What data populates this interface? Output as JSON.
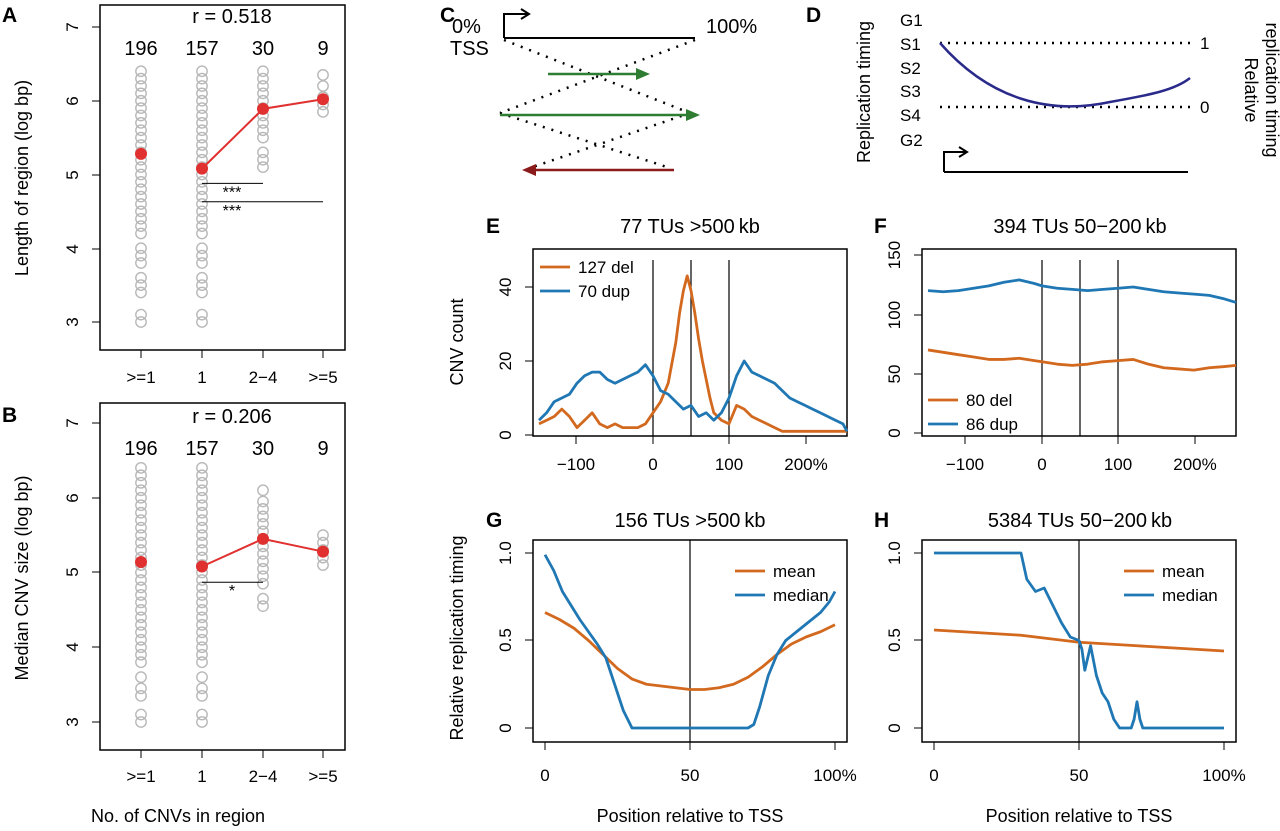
{
  "panels": {
    "A": {
      "letter": "A",
      "stat": "r = 0.518",
      "counts": [
        "196",
        "157",
        "30",
        "9"
      ],
      "ylabel": "Length of region (log bp)",
      "yticks": [
        "3",
        "4",
        "5",
        "6",
        "7"
      ],
      "xticks": [
        ">=1",
        "1",
        "2−4",
        ">=5"
      ],
      "sig": [
        "***",
        "***"
      ]
    },
    "B": {
      "letter": "B",
      "stat": "r = 0.206",
      "counts": [
        "196",
        "157",
        "30",
        "9"
      ],
      "ylabel": "Median CNV size (log bp)",
      "yticks": [
        "3",
        "4",
        "5",
        "6",
        "7"
      ],
      "xticks": [
        ">=1",
        "1",
        "2−4",
        ">=5"
      ],
      "sig": [
        "*"
      ],
      "xlabel": "No. of CNVs in region"
    },
    "C": {
      "letter": "C",
      "left_label": "0%",
      "tss_label": "TSS",
      "right_label": "100%"
    },
    "D": {
      "letter": "D",
      "ylabel": "Replication timing",
      "stages": [
        "G1",
        "S1",
        "S2",
        "S3",
        "S4",
        "G2"
      ],
      "right_ticks": [
        "1",
        "0"
      ],
      "right_label_1": "Relative",
      "right_label_2": "replication timing"
    },
    "E": {
      "letter": "E",
      "title": "77 TUs >500 kb",
      "ylabel": "CNV count",
      "yticks": [
        "0",
        "20",
        "40"
      ],
      "xticks": [
        "−100",
        "0",
        "100",
        "200%"
      ]
    },
    "F": {
      "letter": "F",
      "title": "394 TUs 50−200 kb",
      "yticks": [
        "0",
        "50",
        "100",
        "150"
      ],
      "xticks": [
        "−100",
        "0",
        "100",
        "200%"
      ]
    },
    "G": {
      "letter": "G",
      "title": "156 TUs >500 kb",
      "ylabel": "Relative replication timing",
      "yticks": [
        "0",
        "0.5",
        "1.0"
      ],
      "xticks": [
        "0",
        "50",
        "100%"
      ],
      "xlabel": "Position relative to TSS"
    },
    "H": {
      "letter": "H",
      "title": "5384 TUs 50−200 kb",
      "yticks": [
        "0",
        "0.5",
        "1.0"
      ],
      "xticks": [
        "0",
        "50",
        "100%"
      ],
      "xlabel": "Position relative to TSS"
    }
  },
  "colors": {
    "del": "#d2691e",
    "dup": "#1f77b4",
    "mean": "#d2691e",
    "median": "#1f77b4",
    "points": "#b8b8b8",
    "median_dot": "#e03030",
    "green_arrow": "#2e7d32",
    "red_arrow": "#8b1a1a",
    "timing_curve": "#2a2a8a"
  },
  "chart_data": [
    {
      "panel": "A",
      "type": "scatter",
      "title": "r = 0.518",
      "xlabel": "",
      "ylabel": "Length of region (log bp)",
      "categories": [
        ">=1",
        "1",
        "2−4",
        ">=5"
      ],
      "n": [
        196,
        157,
        30,
        9
      ],
      "ylim": [
        2.9,
        7
      ],
      "medians": [
        5.28,
        5.08,
        5.89,
        6.02
      ],
      "points": [
        [
          3.0,
          3.1,
          3.4,
          3.5,
          3.6,
          3.8,
          3.9,
          4.0,
          4.2,
          4.3,
          4.4,
          4.5,
          4.6,
          4.7,
          4.8,
          4.9,
          5.0,
          5.1,
          5.2,
          5.3,
          5.4,
          5.5,
          5.6,
          5.7,
          5.8,
          5.9,
          6.0,
          6.1,
          6.2,
          6.3,
          6.4
        ],
        [
          3.0,
          3.1,
          3.4,
          3.5,
          3.6,
          3.8,
          3.9,
          4.0,
          4.2,
          4.3,
          4.4,
          4.5,
          4.6,
          4.7,
          4.8,
          4.9,
          5.0,
          5.1,
          5.2,
          5.3,
          5.4,
          5.5,
          5.6,
          5.7,
          5.8,
          5.9,
          6.0,
          6.1,
          6.2,
          6.3,
          6.4
        ],
        [
          5.1,
          5.2,
          5.3,
          5.5,
          5.6,
          5.7,
          5.8,
          5.9,
          6.0,
          6.1,
          6.2,
          6.3,
          6.4
        ],
        [
          5.85,
          5.95,
          6.05,
          6.2,
          6.35
        ]
      ],
      "brackets": [
        {
          "from": "1",
          "to": "2−4",
          "y": 4.88,
          "label": "***"
        },
        {
          "from": "1",
          "to": ">=5",
          "y": 4.63,
          "label": "***"
        }
      ],
      "grid": false
    },
    {
      "panel": "B",
      "type": "scatter",
      "title": "r = 0.206",
      "xlabel": "No. of CNVs in region",
      "ylabel": "Median CNV size (log bp)",
      "categories": [
        ">=1",
        "1",
        "2−4",
        ">=5"
      ],
      "n": [
        196,
        157,
        30,
        9
      ],
      "ylim": [
        2.9,
        7
      ],
      "medians": [
        5.14,
        5.08,
        5.45,
        5.28
      ],
      "points": [
        [
          3.0,
          3.1,
          3.35,
          3.45,
          3.6,
          3.8,
          3.9,
          4.0,
          4.1,
          4.2,
          4.3,
          4.4,
          4.5,
          4.6,
          4.7,
          4.8,
          4.9,
          5.0,
          5.1,
          5.2,
          5.3,
          5.4,
          5.5,
          5.6,
          5.7,
          5.8,
          5.9,
          6.0,
          6.1,
          6.2,
          6.3,
          6.4
        ],
        [
          3.0,
          3.1,
          3.35,
          3.45,
          3.6,
          3.8,
          3.9,
          4.0,
          4.1,
          4.2,
          4.3,
          4.4,
          4.5,
          4.6,
          4.7,
          4.8,
          4.9,
          5.0,
          5.1,
          5.2,
          5.3,
          5.4,
          5.5,
          5.6,
          5.7,
          5.8,
          5.9,
          6.0,
          6.1,
          6.2,
          6.3,
          6.4
        ],
        [
          4.55,
          4.65,
          4.85,
          4.95,
          5.05,
          5.15,
          5.25,
          5.35,
          5.45,
          5.55,
          5.65,
          5.75,
          5.85,
          5.95,
          6.1
        ],
        [
          5.1,
          5.2,
          5.3,
          5.4,
          5.5
        ]
      ],
      "brackets": [
        {
          "from": "1",
          "to": "2−4",
          "y": 4.87,
          "label": "*"
        }
      ],
      "grid": false
    },
    {
      "panel": "E",
      "type": "line",
      "title": "77 TUs >500 kb",
      "xlabel": "",
      "ylabel": "CNV count",
      "xlim": [
        -150,
        260
      ],
      "ylim": [
        0,
        45
      ],
      "vlines": [
        0,
        50,
        100
      ],
      "legend": "top-left",
      "series": [
        {
          "name": "127 del",
          "color": "del",
          "x": [
            -150,
            -140,
            -130,
            -120,
            -110,
            -100,
            -90,
            -80,
            -70,
            -60,
            -50,
            -40,
            -30,
            -20,
            -10,
            0,
            10,
            20,
            30,
            35,
            40,
            45,
            50,
            55,
            60,
            65,
            70,
            75,
            80,
            90,
            100,
            110,
            120,
            130,
            140,
            150,
            160,
            170,
            180,
            190,
            200,
            210,
            220,
            230,
            240,
            250,
            260
          ],
          "values": [
            3,
            4,
            5,
            7,
            5,
            2,
            4,
            6,
            3,
            2,
            3,
            2,
            2,
            2,
            3,
            6,
            9,
            14,
            25,
            33,
            39,
            43,
            39,
            33,
            26,
            20,
            15,
            10,
            6,
            4,
            3,
            8,
            7,
            5,
            4,
            3,
            2,
            1,
            1,
            1,
            1,
            1,
            1,
            1,
            1,
            1,
            1
          ]
        },
        {
          "name": "70 dup",
          "color": "dup",
          "x": [
            -150,
            -140,
            -130,
            -120,
            -110,
            -100,
            -90,
            -80,
            -70,
            -60,
            -50,
            -40,
            -30,
            -20,
            -10,
            0,
            10,
            20,
            30,
            40,
            50,
            60,
            70,
            80,
            90,
            100,
            110,
            120,
            130,
            140,
            150,
            160,
            170,
            180,
            190,
            200,
            210,
            220,
            230,
            240,
            250,
            260
          ],
          "values": [
            4,
            6,
            9,
            10,
            11,
            14,
            16,
            17,
            17,
            15,
            14,
            15,
            16,
            17,
            19,
            16,
            12,
            11,
            9,
            7,
            8,
            5,
            6,
            4,
            6,
            10,
            16,
            20,
            17,
            16,
            15,
            14,
            12,
            10,
            9,
            8,
            7,
            6,
            5,
            4,
            3,
            1
          ]
        }
      ]
    },
    {
      "panel": "F",
      "type": "line",
      "title": "394 TUs 50−200 kb",
      "xlabel": "",
      "ylabel": "",
      "xlim": [
        -150,
        260
      ],
      "ylim": [
        0,
        150
      ],
      "vlines": [
        0,
        50,
        100
      ],
      "legend": "bottom-left",
      "series": [
        {
          "name": "80 del",
          "color": "del",
          "x": [
            -150,
            -130,
            -110,
            -90,
            -70,
            -50,
            -30,
            -10,
            0,
            20,
            40,
            60,
            80,
            100,
            120,
            140,
            160,
            180,
            200,
            220,
            240,
            260
          ],
          "values": [
            70,
            68,
            66,
            64,
            62,
            62,
            63,
            61,
            60,
            58,
            57,
            58,
            60,
            61,
            62,
            58,
            55,
            54,
            53,
            55,
            56,
            57
          ]
        },
        {
          "name": "86 dup",
          "color": "dup",
          "x": [
            -150,
            -130,
            -110,
            -90,
            -70,
            -50,
            -30,
            -10,
            0,
            20,
            40,
            60,
            80,
            100,
            120,
            140,
            160,
            180,
            200,
            220,
            240,
            260
          ],
          "values": [
            120,
            119,
            120,
            122,
            124,
            127,
            129,
            126,
            124,
            122,
            121,
            120,
            121,
            122,
            123,
            121,
            119,
            118,
            117,
            116,
            113,
            110
          ]
        }
      ]
    },
    {
      "panel": "G",
      "type": "line",
      "title": "156 TUs >500 kb",
      "xlabel": "Position relative to TSS",
      "ylabel": "Relative replication timing",
      "xlim": [
        0,
        100
      ],
      "ylim": [
        0,
        1
      ],
      "vlines": [
        50
      ],
      "legend": "top-right",
      "series": [
        {
          "name": "mean",
          "color": "mean",
          "x": [
            0,
            5,
            10,
            15,
            20,
            25,
            30,
            35,
            40,
            45,
            50,
            55,
            60,
            65,
            70,
            75,
            80,
            85,
            90,
            95,
            100
          ],
          "values": [
            0.66,
            0.62,
            0.57,
            0.5,
            0.42,
            0.34,
            0.28,
            0.25,
            0.24,
            0.23,
            0.22,
            0.22,
            0.23,
            0.25,
            0.29,
            0.35,
            0.42,
            0.48,
            0.52,
            0.55,
            0.59
          ]
        },
        {
          "name": "median",
          "color": "median",
          "x": [
            0,
            3,
            6,
            9,
            12,
            15,
            18,
            21,
            24,
            27,
            30,
            33,
            36,
            70,
            72,
            74,
            77,
            80,
            83,
            86,
            89,
            92,
            95,
            98,
            100
          ],
          "values": [
            0.99,
            0.9,
            0.78,
            0.7,
            0.62,
            0.55,
            0.48,
            0.4,
            0.25,
            0.1,
            0.0,
            0.0,
            0.0,
            0.0,
            0.02,
            0.12,
            0.3,
            0.42,
            0.5,
            0.54,
            0.58,
            0.62,
            0.66,
            0.72,
            0.78
          ]
        }
      ]
    },
    {
      "panel": "H",
      "type": "line",
      "title": "5384 TUs 50−200 kb",
      "xlabel": "Position relative to TSS",
      "ylabel": "",
      "xlim": [
        0,
        100
      ],
      "ylim": [
        0,
        1
      ],
      "vlines": [
        50
      ],
      "legend": "top-right",
      "series": [
        {
          "name": "mean",
          "color": "mean",
          "x": [
            0,
            10,
            20,
            30,
            40,
            50,
            60,
            70,
            80,
            90,
            100
          ],
          "values": [
            0.56,
            0.55,
            0.54,
            0.53,
            0.51,
            0.49,
            0.48,
            0.47,
            0.46,
            0.45,
            0.44
          ]
        },
        {
          "name": "median",
          "color": "median",
          "x": [
            0,
            10,
            20,
            30,
            32,
            35,
            38,
            41,
            44,
            47,
            50,
            51,
            52,
            54,
            56,
            58,
            60,
            62,
            64,
            66,
            68,
            69,
            70,
            71,
            72,
            100
          ],
          "values": [
            1.0,
            1.0,
            1.0,
            1.0,
            0.85,
            0.78,
            0.8,
            0.7,
            0.6,
            0.52,
            0.5,
            0.45,
            0.33,
            0.47,
            0.3,
            0.2,
            0.15,
            0.05,
            0.0,
            0.0,
            0.0,
            0.05,
            0.15,
            0.05,
            0.0,
            0.0
          ]
        }
      ]
    }
  ]
}
